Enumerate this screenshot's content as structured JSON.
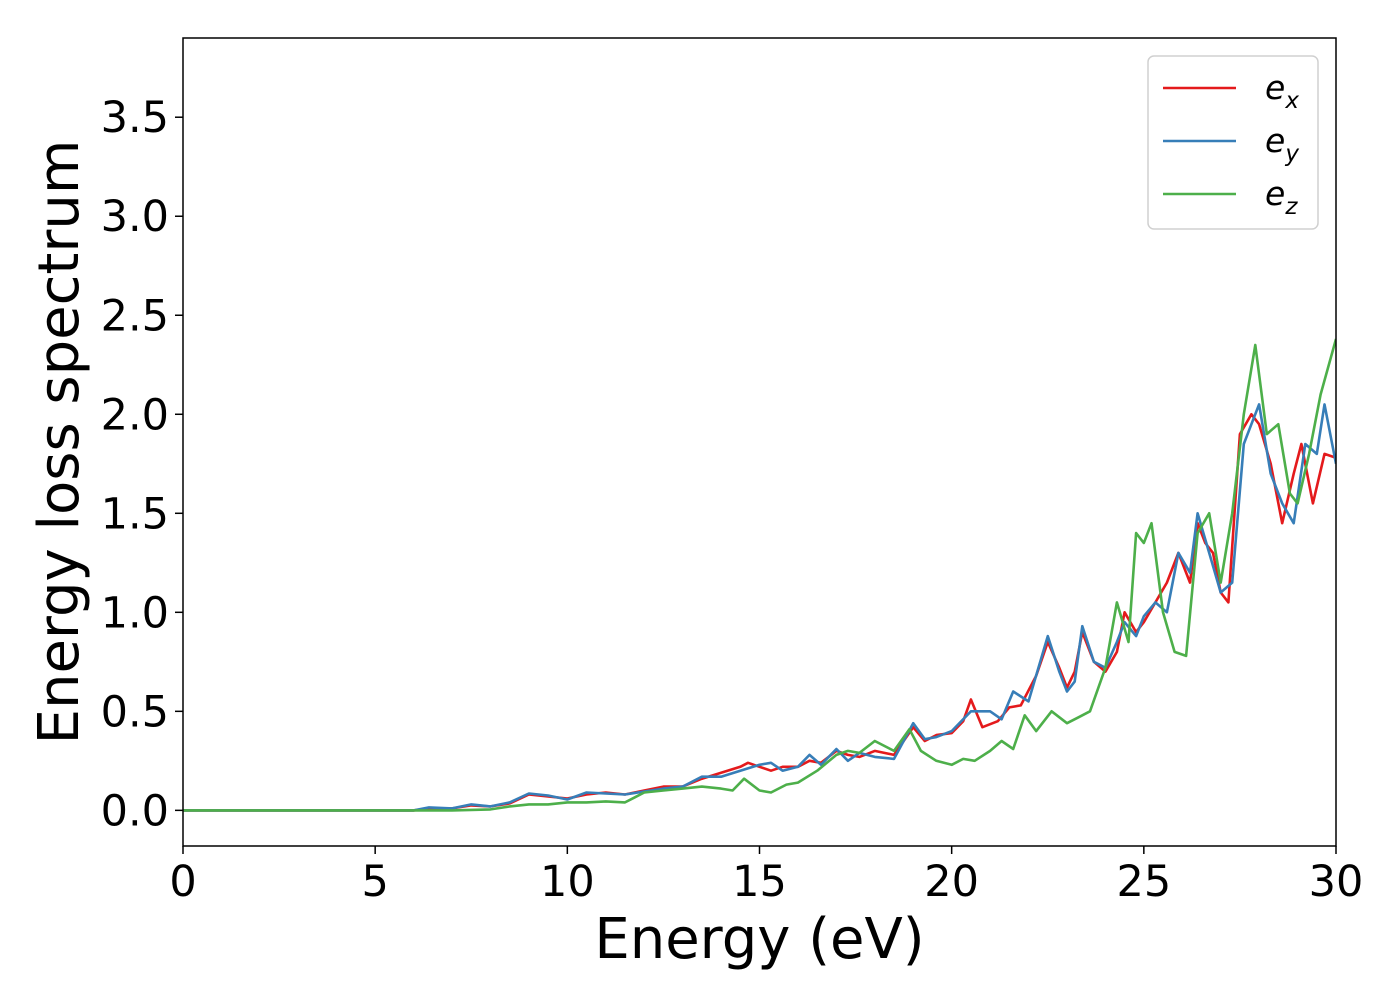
{
  "chart_data": {
    "type": "line",
    "title": "",
    "xlabel": "Energy (eV)",
    "ylabel": "Energy loss spectrum",
    "xlim": [
      0,
      30
    ],
    "ylim": [
      -0.18,
      3.9
    ],
    "xticks": [
      0,
      5,
      10,
      15,
      20,
      25,
      30
    ],
    "yticks": [
      0.0,
      0.5,
      1.0,
      1.5,
      2.0,
      2.5,
      3.0,
      3.5
    ],
    "xtick_labels": [
      "0",
      "5",
      "10",
      "15",
      "20",
      "25",
      "30"
    ],
    "ytick_labels": [
      "0.0",
      "0.5",
      "1.0",
      "1.5",
      "2.0",
      "2.5",
      "3.0",
      "3.5"
    ],
    "grid": false,
    "legend_position": "top-right",
    "series": [
      {
        "name": "e",
        "subscript": "x",
        "color": "#e41a1c",
        "points": [
          [
            0,
            0
          ],
          [
            6,
            0
          ],
          [
            6.4,
            0.01
          ],
          [
            7,
            0.01
          ],
          [
            7.5,
            0.025
          ],
          [
            8,
            0.02
          ],
          [
            8.5,
            0.035
          ],
          [
            9,
            0.08
          ],
          [
            9.5,
            0.07
          ],
          [
            10,
            0.06
          ],
          [
            10.5,
            0.08
          ],
          [
            11,
            0.09
          ],
          [
            11.5,
            0.08
          ],
          [
            12,
            0.1
          ],
          [
            12.5,
            0.12
          ],
          [
            13,
            0.12
          ],
          [
            13.5,
            0.16
          ],
          [
            14,
            0.19
          ],
          [
            14.5,
            0.22
          ],
          [
            14.7,
            0.24
          ],
          [
            15,
            0.22
          ],
          [
            15.3,
            0.2
          ],
          [
            15.6,
            0.22
          ],
          [
            16,
            0.22
          ],
          [
            16.3,
            0.25
          ],
          [
            16.6,
            0.24
          ],
          [
            17,
            0.3
          ],
          [
            17.3,
            0.28
          ],
          [
            17.6,
            0.27
          ],
          [
            18,
            0.3
          ],
          [
            18.5,
            0.28
          ],
          [
            19,
            0.42
          ],
          [
            19.3,
            0.35
          ],
          [
            19.6,
            0.38
          ],
          [
            20,
            0.39
          ],
          [
            20.3,
            0.45
          ],
          [
            20.5,
            0.56
          ],
          [
            20.8,
            0.42
          ],
          [
            21.2,
            0.45
          ],
          [
            21.5,
            0.52
          ],
          [
            21.8,
            0.53
          ],
          [
            22.2,
            0.68
          ],
          [
            22.5,
            0.85
          ],
          [
            22.8,
            0.72
          ],
          [
            23,
            0.62
          ],
          [
            23.2,
            0.7
          ],
          [
            23.4,
            0.9
          ],
          [
            23.7,
            0.75
          ],
          [
            24,
            0.7
          ],
          [
            24.3,
            0.8
          ],
          [
            24.5,
            1.0
          ],
          [
            24.8,
            0.9
          ],
          [
            25,
            0.95
          ],
          [
            25.3,
            1.05
          ],
          [
            25.6,
            1.15
          ],
          [
            25.9,
            1.3
          ],
          [
            26.2,
            1.15
          ],
          [
            26.4,
            1.45
          ],
          [
            26.6,
            1.35
          ],
          [
            26.8,
            1.3
          ],
          [
            27,
            1.1
          ],
          [
            27.2,
            1.05
          ],
          [
            27.5,
            1.9
          ],
          [
            27.8,
            2.0
          ],
          [
            28,
            1.95
          ],
          [
            28.3,
            1.75
          ],
          [
            28.6,
            1.45
          ],
          [
            28.9,
            1.7
          ],
          [
            29.1,
            1.85
          ],
          [
            29.4,
            1.55
          ],
          [
            29.7,
            1.8
          ],
          [
            30,
            1.78
          ]
        ]
      },
      {
        "name": "e",
        "subscript": "y",
        "color": "#377eb8",
        "points": [
          [
            0,
            0
          ],
          [
            6,
            0
          ],
          [
            6.4,
            0.015
          ],
          [
            7,
            0.01
          ],
          [
            7.5,
            0.03
          ],
          [
            8,
            0.02
          ],
          [
            8.5,
            0.04
          ],
          [
            9,
            0.085
          ],
          [
            9.5,
            0.075
          ],
          [
            10,
            0.055
          ],
          [
            10.5,
            0.09
          ],
          [
            11,
            0.085
          ],
          [
            11.5,
            0.08
          ],
          [
            12,
            0.095
          ],
          [
            12.5,
            0.11
          ],
          [
            13,
            0.12
          ],
          [
            13.5,
            0.17
          ],
          [
            14,
            0.17
          ],
          [
            14.5,
            0.2
          ],
          [
            15,
            0.23
          ],
          [
            15.3,
            0.24
          ],
          [
            15.6,
            0.2
          ],
          [
            16,
            0.22
          ],
          [
            16.3,
            0.28
          ],
          [
            16.6,
            0.23
          ],
          [
            17,
            0.31
          ],
          [
            17.3,
            0.25
          ],
          [
            17.6,
            0.29
          ],
          [
            18,
            0.27
          ],
          [
            18.5,
            0.26
          ],
          [
            19,
            0.44
          ],
          [
            19.3,
            0.36
          ],
          [
            19.6,
            0.37
          ],
          [
            20,
            0.4
          ],
          [
            20.5,
            0.5
          ],
          [
            20.8,
            0.5
          ],
          [
            21,
            0.5
          ],
          [
            21.3,
            0.46
          ],
          [
            21.6,
            0.6
          ],
          [
            22,
            0.55
          ],
          [
            22.5,
            0.88
          ],
          [
            22.8,
            0.7
          ],
          [
            23,
            0.6
          ],
          [
            23.2,
            0.65
          ],
          [
            23.4,
            0.93
          ],
          [
            23.7,
            0.75
          ],
          [
            24,
            0.72
          ],
          [
            24.3,
            0.85
          ],
          [
            24.5,
            0.95
          ],
          [
            24.8,
            0.88
          ],
          [
            25,
            0.98
          ],
          [
            25.3,
            1.05
          ],
          [
            25.6,
            1.0
          ],
          [
            25.9,
            1.3
          ],
          [
            26.2,
            1.2
          ],
          [
            26.4,
            1.5
          ],
          [
            26.7,
            1.3
          ],
          [
            27,
            1.1
          ],
          [
            27.3,
            1.15
          ],
          [
            27.6,
            1.85
          ],
          [
            27.8,
            1.95
          ],
          [
            28,
            2.05
          ],
          [
            28.3,
            1.7
          ],
          [
            28.6,
            1.55
          ],
          [
            28.9,
            1.45
          ],
          [
            29.2,
            1.85
          ],
          [
            29.5,
            1.8
          ],
          [
            29.7,
            2.05
          ],
          [
            30,
            1.75
          ]
        ]
      },
      {
        "name": "e",
        "subscript": "z",
        "color": "#4daf4a",
        "points": [
          [
            0,
            0
          ],
          [
            7,
            0
          ],
          [
            8,
            0.005
          ],
          [
            8.5,
            0.02
          ],
          [
            9,
            0.03
          ],
          [
            9.5,
            0.03
          ],
          [
            10,
            0.04
          ],
          [
            10.5,
            0.04
          ],
          [
            11,
            0.045
          ],
          [
            11.5,
            0.04
          ],
          [
            12,
            0.09
          ],
          [
            12.5,
            0.1
          ],
          [
            13,
            0.11
          ],
          [
            13.5,
            0.12
          ],
          [
            14,
            0.11
          ],
          [
            14.3,
            0.1
          ],
          [
            14.6,
            0.16
          ],
          [
            15,
            0.1
          ],
          [
            15.3,
            0.09
          ],
          [
            15.7,
            0.13
          ],
          [
            16,
            0.14
          ],
          [
            16.5,
            0.2
          ],
          [
            17,
            0.28
          ],
          [
            17.3,
            0.3
          ],
          [
            17.6,
            0.29
          ],
          [
            18,
            0.35
          ],
          [
            18.5,
            0.3
          ],
          [
            18.9,
            0.41
          ],
          [
            19.2,
            0.3
          ],
          [
            19.6,
            0.25
          ],
          [
            20,
            0.23
          ],
          [
            20.3,
            0.26
          ],
          [
            20.6,
            0.25
          ],
          [
            21,
            0.3
          ],
          [
            21.3,
            0.35
          ],
          [
            21.6,
            0.31
          ],
          [
            21.9,
            0.48
          ],
          [
            22.2,
            0.4
          ],
          [
            22.6,
            0.5
          ],
          [
            23,
            0.44
          ],
          [
            23.3,
            0.47
          ],
          [
            23.6,
            0.5
          ],
          [
            24,
            0.72
          ],
          [
            24.3,
            1.05
          ],
          [
            24.6,
            0.85
          ],
          [
            24.8,
            1.4
          ],
          [
            25,
            1.35
          ],
          [
            25.2,
            1.45
          ],
          [
            25.5,
            1.0
          ],
          [
            25.8,
            0.8
          ],
          [
            26.1,
            0.78
          ],
          [
            26.4,
            1.4
          ],
          [
            26.7,
            1.5
          ],
          [
            27,
            1.15
          ],
          [
            27.3,
            1.5
          ],
          [
            27.6,
            2.0
          ],
          [
            27.9,
            2.35
          ],
          [
            28.2,
            1.9
          ],
          [
            28.5,
            1.95
          ],
          [
            28.8,
            1.6
          ],
          [
            29,
            1.55
          ],
          [
            29.3,
            1.8
          ],
          [
            29.6,
            2.1
          ],
          [
            30,
            2.38
          ]
        ]
      }
    ]
  }
}
